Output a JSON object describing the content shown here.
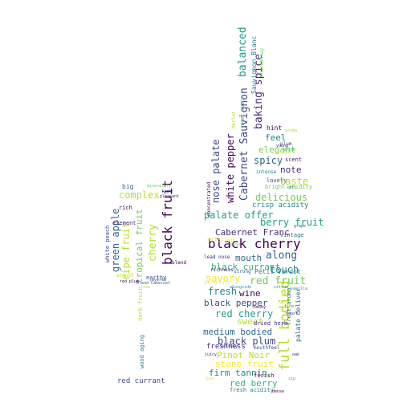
{
  "palette": {
    "c1": "#440154",
    "c2": "#482878",
    "c3": "#3e4a89",
    "c4": "#31688e",
    "c5": "#26828e",
    "c6": "#1f9e89",
    "c7": "#35b779",
    "c8": "#6ece58",
    "c9": "#b5de2b",
    "c10": "#fde725"
  },
  "words": {
    "black_cherry": "black cherry",
    "black_fruit": "black fruit",
    "full_bodied": "full bodied",
    "cabernet_sauvignon": "Cabernet Sauvignon",
    "baking_spice": "baking spice",
    "balanced": "balanced",
    "sauvignon_blanc": "Sauvignon Blanc",
    "white_pepper": "white pepper",
    "nose_palate": "nose palate",
    "palate_offer": "palate offer",
    "cabernet_franc": "Cabernet Franc",
    "berry_fruit": "berry fruit",
    "mouth": "mouth",
    "along": "along",
    "red_fruit": "red fruit",
    "black_currant": "black currant",
    "savory": "savory",
    "fresh": "fresh",
    "wine": "wine",
    "touch": "touch",
    "red_cherry": "red cherry",
    "black_pepper": "black pepper",
    "sweet": "sweet",
    "medium_bodied": "medium bodied",
    "black_plum": "black plum",
    "freshness": "freshness",
    "pinot_noir": "Pinot Noir",
    "stone_fruit": "stone fruit",
    "firm_tannin": "firm tannin",
    "red_berry": "red berry",
    "spicy": "spicy",
    "elegant": "elegant",
    "feel": "feel",
    "note": "note",
    "taste": "taste",
    "delicious": "delicious",
    "crisp_acidity": "crisp acidity",
    "bright_acidity": "bright acidity",
    "hint": "hint",
    "scent": "scent",
    "lovely": "lovely",
    "intense": "intense",
    "vintage": "vintage",
    "petit_verdot": "Petit Verdot",
    "finish": "finish",
    "fresh_acidity": "fresh acidity",
    "dried_herb": "dried herb",
    "mouthfeel": "mouthfeel",
    "palate_deliver": "palate deliver",
    "offering": "offering",
    "concentrated": "concentrated",
    "lead_nose": "lead nose",
    "richness": "richness",
    "structure": "structure",
    "strong": "strong",
    "green_apple": "green apple",
    "complex": "complex",
    "tropical_fruit": "tropical fruit",
    "ripe_fruit": "ripe fruit",
    "cherry": "cherry",
    "big": "big",
    "rich": "rich",
    "element": "element",
    "white_peach": "white peach",
    "almost": "almost",
    "earthy": "earthy",
    "red_currant": "red currant",
    "wood_aging": "wood aging",
    "dark_fruit": "dark fruit",
    "blend": "blend",
    "red_plum": "red plum",
    "blend_cabernet": "blend Cabernet",
    "layered": "layered",
    "light": "light",
    "pleasant": "pleasant",
    "minerality": "minerality",
    "fruit_aroma": "fruit aroma",
    "sweet_spice": "sweet spice",
    "plum": "plum",
    "chardonnay": "Chardonnay",
    "apricot": "apricot",
    "grape": "grape",
    "good": "good",
    "merlot": "Merlot",
    "fine": "fine",
    "alongside": "alongside",
    "smoky": "smoky",
    "close": "close",
    "aroma": "aroma",
    "drink": "drink",
    "young": "young",
    "velvety": "velvety",
    "juicy": "juicy",
    "open": "open",
    "oak": "oak",
    "soft": "soft",
    "rose": "rose",
    "vanilla": "vanilla",
    "toast": "toast",
    "dense": "dense",
    "sip": "sip",
    "zesty": "zesty",
    "citrus": "citrus"
  }
}
